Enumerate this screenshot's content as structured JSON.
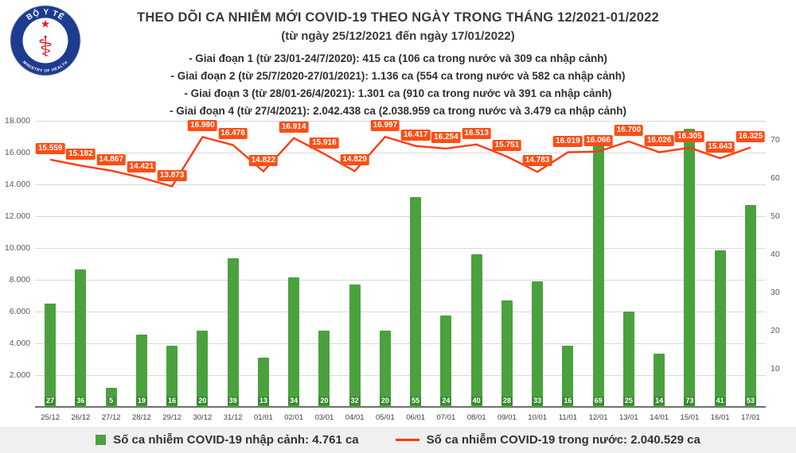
{
  "header": {
    "title": "THEO DÕI CA NHIỄM MỚI COVID-19 THEO NGÀY TRONG THÁNG 12/2021-01/2022",
    "subtitle": "(từ ngày 25/12/2021 đến ngày 17/01/2022)",
    "phases": [
      "- Giai đoạn 1 (từ 23/01-24/7/2020): 415 ca (106 ca trong nước và 309 ca nhập cảnh)",
      "- Giai đoạn 2 (từ 25/7/2020-27/01/2021): 1.136 ca (554 ca trong nước và 582 ca nhập cảnh)",
      "- Giai đoạn 3 (từ 28/01-26/4/2021): 1.301 ca (910 ca trong nước và 391 ca nhập cảnh)",
      "- Giai đoạn 4 (từ 27/4/2021): 2.042.438 ca (2.038.959 ca trong nước và 3.479 ca nhập cảnh)"
    ]
  },
  "logo": {
    "top_text": "BỘ Y TẾ",
    "bottom_text": "MINISTRY OF HEALTH"
  },
  "chart_data": {
    "type": "bar",
    "subtype": "bar+line combo",
    "categories": [
      "25/12",
      "26/12",
      "27/12",
      "28/12",
      "29/12",
      "30/12",
      "31/12",
      "01/01",
      "02/01",
      "03/01",
      "04/01",
      "05/01",
      "06/01",
      "07/01",
      "08/01",
      "09/01",
      "10/01",
      "11/01",
      "12/01",
      "13/01",
      "14/01",
      "15/01",
      "16/01",
      "17/01"
    ],
    "series": [
      {
        "name": "Số ca nhiễm COVID-19 nhập cảnh",
        "type": "bar",
        "axis": "right",
        "color": "#4ba13e",
        "chip_color": "#3a8a31",
        "values": [
          27,
          36,
          5,
          19,
          16,
          20,
          39,
          13,
          34,
          20,
          32,
          20,
          55,
          24,
          40,
          28,
          33,
          16,
          69,
          25,
          14,
          73,
          41,
          53
        ]
      },
      {
        "name": "Số ca nhiễm COVID-19 trong nước",
        "type": "line",
        "axis": "left",
        "color": "#fe3b10",
        "label_bg": "#fe4e16",
        "values": [
          15559,
          15182,
          14867,
          14421,
          13873,
          16980,
          16476,
          14822,
          16914,
          15916,
          14829,
          16997,
          16417,
          16254,
          16513,
          15751,
          14783,
          16019,
          16066,
          16700,
          16026,
          16305,
          15643,
          16325
        ],
        "value_labels": [
          "15.559",
          "15.182",
          "14.867",
          "14.421",
          "13.873",
          "16.980",
          "16.476",
          "14.822",
          "16.914",
          "15.916",
          "14.829",
          "16.997",
          "16.417",
          "16.254",
          "16.513",
          "15.751",
          "14.783",
          "16.019",
          "16.066",
          "16.700",
          "16.026",
          "16.305",
          "15.643",
          "16.325"
        ]
      }
    ],
    "left_axis": {
      "min": 0,
      "max": 18000,
      "ticks": [
        {
          "v": 2000,
          "label": "2.000"
        },
        {
          "v": 4000,
          "label": "4.000"
        },
        {
          "v": 6000,
          "label": "6.000"
        },
        {
          "v": 8000,
          "label": "8.000"
        },
        {
          "v": 10000,
          "label": "10.000"
        },
        {
          "v": 12000,
          "label": "12.000"
        },
        {
          "v": 14000,
          "label": "14.000"
        },
        {
          "v": 16000,
          "label": "16.000"
        },
        {
          "v": 18000,
          "label": "18.000"
        }
      ]
    },
    "right_axis": {
      "min": 0,
      "max": 75,
      "ticks": [
        {
          "v": 10,
          "label": "10"
        },
        {
          "v": 20,
          "label": "20"
        },
        {
          "v": 30,
          "label": "30"
        },
        {
          "v": 40,
          "label": "40"
        },
        {
          "v": 50,
          "label": "50"
        },
        {
          "v": 60,
          "label": "60"
        },
        {
          "v": 70,
          "label": "70"
        }
      ]
    },
    "grid": true,
    "legend_position": "bottom"
  },
  "legend": [
    {
      "marker": "bar",
      "label": "Số ca nhiễm COVID-19 nhập cảnh: 4.761 ca"
    },
    {
      "marker": "line",
      "label": "Số ca nhiễm COVID-19 trong nước: 2.040.529 ca"
    }
  ]
}
